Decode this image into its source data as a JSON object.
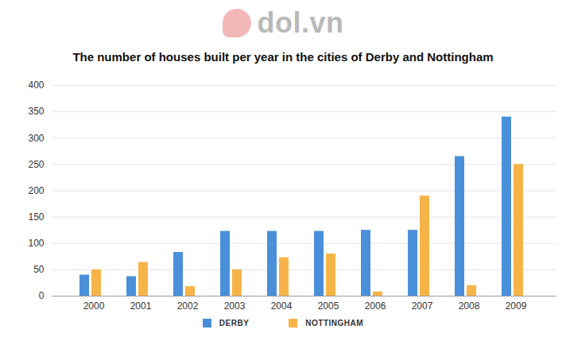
{
  "chart_data": {
    "type": "bar",
    "title": "The number of houses built per year in the cities of Derby and Nottingham",
    "watermark": "dol.vn",
    "categories": [
      "2000",
      "2001",
      "2002",
      "2003",
      "2004",
      "2005",
      "2006",
      "2007",
      "2008",
      "2009"
    ],
    "series": [
      {
        "name": "DERBY",
        "color": "#4a8fd9",
        "values": [
          40,
          37,
          83,
          123,
          123,
          123,
          125,
          125,
          265,
          340
        ]
      },
      {
        "name": "NOTTINGHAM",
        "color": "#f6b347",
        "values": [
          50,
          64,
          18,
          50,
          73,
          80,
          8,
          190,
          20,
          250
        ]
      }
    ],
    "ylim": [
      0,
      400
    ],
    "yticks": [
      0,
      50,
      100,
      150,
      200,
      250,
      300,
      350,
      400
    ],
    "grid": true,
    "legend": "bottom"
  }
}
